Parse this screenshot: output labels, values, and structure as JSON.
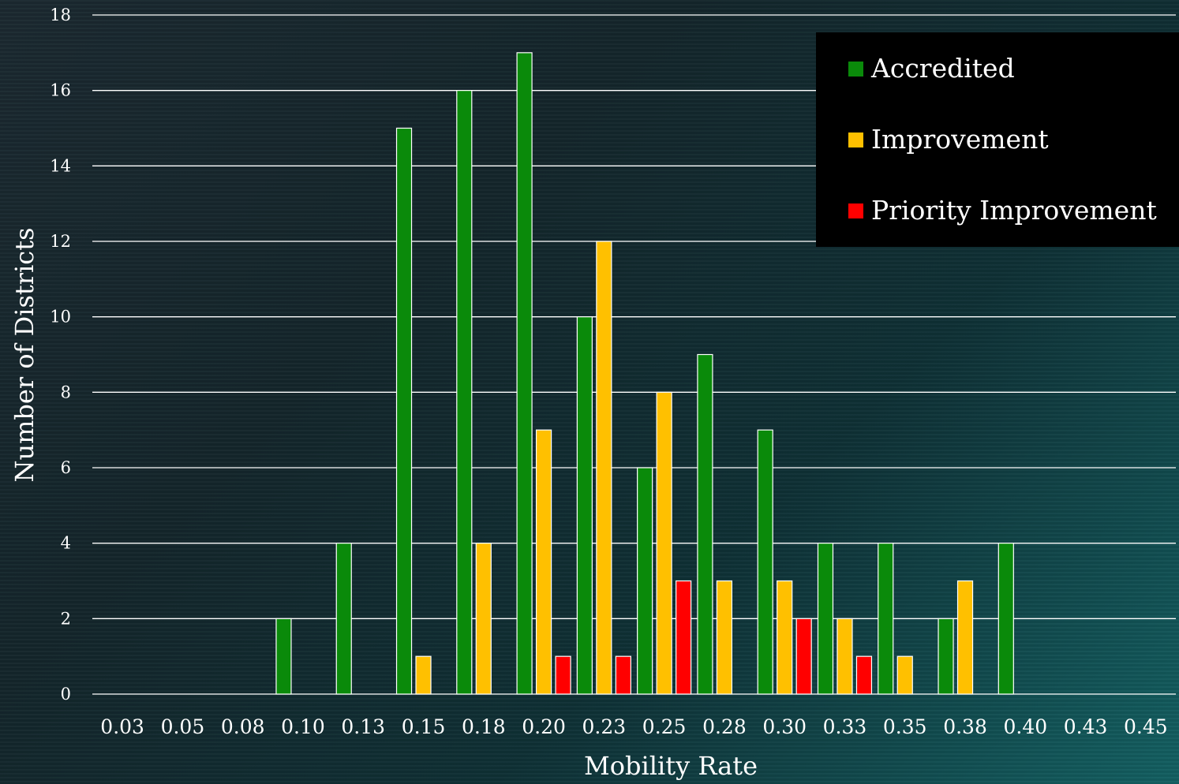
{
  "chart_data": {
    "type": "bar",
    "xlabel": "Mobility Rate",
    "ylabel": "Number of Districts",
    "ylim": [
      0,
      18
    ],
    "yticks": [
      "0",
      "2",
      "4",
      "6",
      "8",
      "10",
      "12",
      "14",
      "16",
      "18"
    ],
    "categories": [
      "0.03",
      "0.05",
      "0.08",
      "0.10",
      "0.13",
      "0.15",
      "0.18",
      "0.20",
      "0.23",
      "0.25",
      "0.28",
      "0.30",
      "0.33",
      "0.35",
      "0.38",
      "0.40",
      "0.43",
      "0.45"
    ],
    "grid": true,
    "legend_position": "top-right",
    "series": [
      {
        "name": "Accredited",
        "color": "#0a8a0a",
        "values": [
          0,
          0,
          0,
          2,
          4,
          15,
          16,
          17,
          10,
          6,
          9,
          7,
          4,
          4,
          2,
          4,
          0,
          0
        ]
      },
      {
        "name": "Improvement",
        "color": "#ffc000",
        "values": [
          0,
          0,
          0,
          0,
          0,
          1,
          4,
          7,
          12,
          8,
          3,
          3,
          2,
          1,
          3,
          0,
          0,
          0
        ]
      },
      {
        "name": "Priority Improvement",
        "color": "#ff0000",
        "values": [
          0,
          0,
          0,
          0,
          0,
          0,
          0,
          1,
          1,
          3,
          0,
          2,
          1,
          0,
          0,
          0,
          0,
          0
        ]
      }
    ]
  }
}
